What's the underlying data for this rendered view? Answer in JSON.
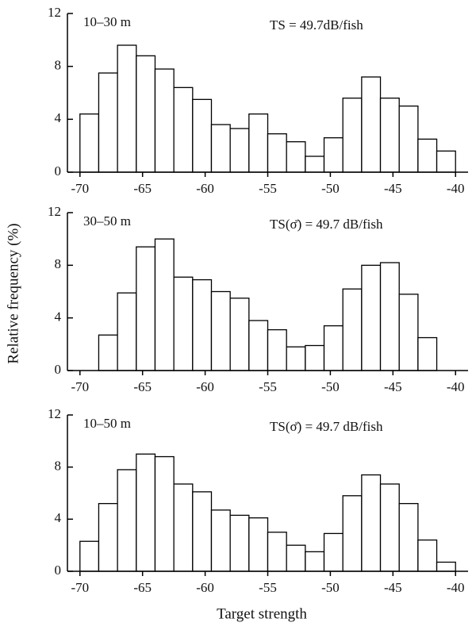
{
  "chart_data": [
    {
      "type": "histogram",
      "label": "10–30 m",
      "annotation": "TS = 49.7dB/fish",
      "bins": [
        -70,
        -68.5,
        -67,
        -65.5,
        -64,
        -62.5,
        -61,
        -59.5,
        -58,
        -56.5,
        -55,
        -53.5,
        -52,
        -50.5,
        -49,
        -47.5,
        -46,
        -44.5,
        -43,
        -41.5,
        -40
      ],
      "values": [
        4.4,
        7.5,
        9.6,
        8.8,
        7.8,
        6.4,
        5.5,
        3.6,
        3.3,
        4.4,
        2.9,
        2.3,
        1.2,
        2.6,
        5.6,
        7.2,
        5.6,
        5.0,
        2.5,
        1.6
      ],
      "color": "#ffffff",
      "edgecolor": "#000000",
      "xlim": [
        -71,
        -39
      ],
      "xticks": [
        -70,
        -65,
        -60,
        -55,
        -50,
        -45,
        -40
      ],
      "ylim": [
        0,
        12
      ],
      "yticks": [
        0,
        4,
        8,
        12
      ]
    },
    {
      "type": "histogram",
      "label": "30–50 m",
      "annotation": "TS(σ̄) = 49.7 dB/fish",
      "ylabel": "Relative frequency (%)",
      "bins": [
        -70,
        -68.5,
        -67,
        -65.5,
        -64,
        -62.5,
        -61,
        -59.5,
        -58,
        -56.5,
        -55,
        -53.5,
        -52,
        -50.5,
        -49,
        -47.5,
        -46,
        -44.5,
        -43,
        -41.5,
        -40
      ],
      "values": [
        0,
        2.7,
        5.9,
        9.4,
        10.0,
        7.1,
        6.9,
        6.0,
        5.5,
        3.8,
        3.1,
        1.8,
        1.9,
        3.4,
        6.2,
        8.0,
        8.2,
        5.8,
        2.5,
        0
      ],
      "color": "#ffffff",
      "edgecolor": "#000000",
      "xlim": [
        -71,
        -39
      ],
      "xticks": [
        -70,
        -65,
        -60,
        -55,
        -50,
        -45,
        -40
      ],
      "ylim": [
        0,
        12
      ],
      "yticks": [
        0,
        4,
        8,
        12
      ]
    },
    {
      "type": "histogram",
      "label": "10–50 m",
      "annotation": "TS(σ̄) = 49.7 dB/fish",
      "xlabel": "Target strength",
      "bins": [
        -70,
        -68.5,
        -67,
        -65.5,
        -64,
        -62.5,
        -61,
        -59.5,
        -58,
        -56.5,
        -55,
        -53.5,
        -52,
        -50.5,
        -49,
        -47.5,
        -46,
        -44.5,
        -43,
        -41.5,
        -40
      ],
      "values": [
        2.3,
        5.2,
        7.8,
        9.0,
        8.8,
        6.7,
        6.1,
        4.7,
        4.3,
        4.1,
        3.0,
        2.0,
        1.5,
        2.9,
        5.8,
        7.4,
        6.7,
        5.2,
        2.4,
        0.7
      ],
      "color": "#ffffff",
      "edgecolor": "#000000",
      "xlim": [
        -71,
        -39
      ],
      "xticks": [
        -70,
        -65,
        -60,
        -55,
        -50,
        -45,
        -40
      ],
      "ylim": [
        0,
        12
      ],
      "yticks": [
        0,
        4,
        8,
        12
      ]
    }
  ]
}
